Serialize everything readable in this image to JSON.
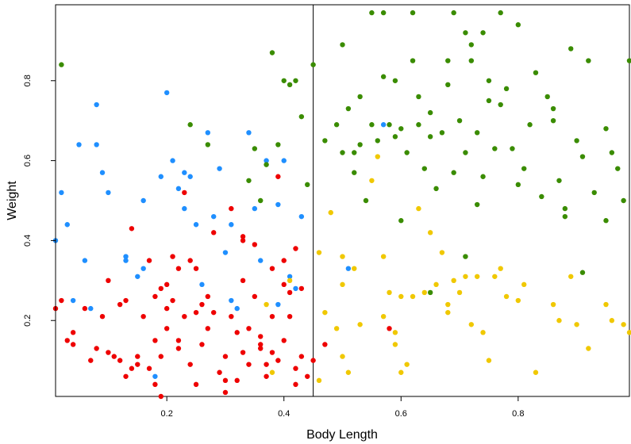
{
  "chart_data": {
    "type": "scatter",
    "title": "",
    "xlabel": "Body Length",
    "ylabel": "Weight",
    "xlim": [
      0.01,
      0.99
    ],
    "ylim": [
      0.01,
      0.99
    ],
    "x_ticks": [
      0.2,
      0.4,
      0.6,
      0.8
    ],
    "y_ticks": [
      0.2,
      0.4,
      0.6,
      0.8
    ],
    "x_tick_labels": [
      "0.2",
      "0.4",
      "0.6",
      "0.8"
    ],
    "y_tick_labels": [
      "0.2",
      "0.4",
      "0.6",
      "0.8"
    ],
    "grid": false,
    "legend": "none",
    "decision_boundaries": {
      "vertical_x": 0.45
    },
    "series": [
      {
        "color": "#1f8fff",
        "points": [
          [
            0.01,
            0.4
          ],
          [
            0.02,
            0.52
          ],
          [
            0.03,
            0.44
          ],
          [
            0.05,
            0.64
          ],
          [
            0.06,
            0.35
          ],
          [
            0.08,
            0.74
          ],
          [
            0.08,
            0.64
          ],
          [
            0.09,
            0.57
          ],
          [
            0.1,
            0.52
          ],
          [
            0.13,
            0.36
          ],
          [
            0.13,
            0.35
          ],
          [
            0.15,
            0.31
          ],
          [
            0.16,
            0.5
          ],
          [
            0.16,
            0.33
          ],
          [
            0.19,
            0.56
          ],
          [
            0.2,
            0.77
          ],
          [
            0.21,
            0.6
          ],
          [
            0.22,
            0.53
          ],
          [
            0.23,
            0.57
          ],
          [
            0.23,
            0.48
          ],
          [
            0.24,
            0.56
          ],
          [
            0.25,
            0.44
          ],
          [
            0.26,
            0.29
          ],
          [
            0.27,
            0.67
          ],
          [
            0.28,
            0.46
          ],
          [
            0.29,
            0.58
          ],
          [
            0.3,
            0.37
          ],
          [
            0.31,
            0.44
          ],
          [
            0.31,
            0.25
          ],
          [
            0.32,
            0.23
          ],
          [
            0.34,
            0.67
          ],
          [
            0.35,
            0.48
          ],
          [
            0.36,
            0.35
          ],
          [
            0.37,
            0.6
          ],
          [
            0.39,
            0.49
          ],
          [
            0.39,
            0.24
          ],
          [
            0.4,
            0.6
          ],
          [
            0.41,
            0.31
          ],
          [
            0.42,
            0.28
          ],
          [
            0.43,
            0.46
          ],
          [
            0.04,
            0.25
          ],
          [
            0.07,
            0.23
          ],
          [
            0.57,
            0.69
          ],
          [
            0.51,
            0.33
          ],
          [
            0.18,
            0.06
          ]
        ]
      },
      {
        "color": "#ee0000",
        "points": [
          [
            0.01,
            0.23
          ],
          [
            0.02,
            0.25
          ],
          [
            0.03,
            0.15
          ],
          [
            0.04,
            0.17
          ],
          [
            0.04,
            0.14
          ],
          [
            0.06,
            0.23
          ],
          [
            0.07,
            0.1
          ],
          [
            0.08,
            0.13
          ],
          [
            0.09,
            0.21
          ],
          [
            0.1,
            0.3
          ],
          [
            0.1,
            0.12
          ],
          [
            0.11,
            0.11
          ],
          [
            0.12,
            0.24
          ],
          [
            0.12,
            0.1
          ],
          [
            0.13,
            0.06
          ],
          [
            0.13,
            0.25
          ],
          [
            0.14,
            0.43
          ],
          [
            0.14,
            0.08
          ],
          [
            0.15,
            0.09
          ],
          [
            0.15,
            0.11
          ],
          [
            0.16,
            0.21
          ],
          [
            0.17,
            0.35
          ],
          [
            0.17,
            0.08
          ],
          [
            0.18,
            0.15
          ],
          [
            0.18,
            0.04
          ],
          [
            0.19,
            0.28
          ],
          [
            0.19,
            0.11
          ],
          [
            0.2,
            0.23
          ],
          [
            0.2,
            0.29
          ],
          [
            0.2,
            0.18
          ],
          [
            0.21,
            0.36
          ],
          [
            0.21,
            0.25
          ],
          [
            0.22,
            0.13
          ],
          [
            0.22,
            0.15
          ],
          [
            0.23,
            0.21
          ],
          [
            0.23,
            0.52
          ],
          [
            0.24,
            0.35
          ],
          [
            0.24,
            0.09
          ],
          [
            0.25,
            0.33
          ],
          [
            0.25,
            0.22
          ],
          [
            0.25,
            0.04
          ],
          [
            0.26,
            0.24
          ],
          [
            0.26,
            0.14
          ],
          [
            0.27,
            0.18
          ],
          [
            0.28,
            0.22
          ],
          [
            0.28,
            0.42
          ],
          [
            0.29,
            0.07
          ],
          [
            0.3,
            0.11
          ],
          [
            0.3,
            0.02
          ],
          [
            0.31,
            0.21
          ],
          [
            0.32,
            0.17
          ],
          [
            0.32,
            0.05
          ],
          [
            0.33,
            0.3
          ],
          [
            0.33,
            0.41
          ],
          [
            0.33,
            0.12
          ],
          [
            0.34,
            0.18
          ],
          [
            0.34,
            0.09
          ],
          [
            0.35,
            0.39
          ],
          [
            0.35,
            0.26
          ],
          [
            0.36,
            0.16
          ],
          [
            0.36,
            0.13
          ],
          [
            0.37,
            0.06
          ],
          [
            0.37,
            0.09
          ],
          [
            0.38,
            0.21
          ],
          [
            0.38,
            0.33
          ],
          [
            0.38,
            0.12
          ],
          [
            0.39,
            0.56
          ],
          [
            0.39,
            0.1
          ],
          [
            0.4,
            0.35
          ],
          [
            0.4,
            0.15
          ],
          [
            0.41,
            0.27
          ],
          [
            0.41,
            0.21
          ],
          [
            0.42,
            0.08
          ],
          [
            0.42,
            0.04
          ],
          [
            0.43,
            0.28
          ],
          [
            0.43,
            0.11
          ],
          [
            0.44,
            0.06
          ],
          [
            0.45,
            0.1
          ],
          [
            0.33,
            0.4
          ],
          [
            0.19,
            0.01
          ],
          [
            0.36,
            0.14
          ],
          [
            0.3,
            0.05
          ],
          [
            0.47,
            0.14
          ],
          [
            0.58,
            0.18
          ],
          [
            0.31,
            0.48
          ],
          [
            0.22,
            0.33
          ],
          [
            0.4,
            0.29
          ],
          [
            0.27,
            0.26
          ],
          [
            0.18,
            0.26
          ],
          [
            0.42,
            0.38
          ]
        ]
      },
      {
        "color": "#f0c800",
        "points": [
          [
            0.41,
            0.3
          ],
          [
            0.46,
            0.37
          ],
          [
            0.47,
            0.22
          ],
          [
            0.48,
            0.47
          ],
          [
            0.5,
            0.36
          ],
          [
            0.5,
            0.29
          ],
          [
            0.5,
            0.11
          ],
          [
            0.51,
            0.07
          ],
          [
            0.52,
            0.33
          ],
          [
            0.53,
            0.19
          ],
          [
            0.55,
            0.55
          ],
          [
            0.56,
            0.61
          ],
          [
            0.57,
            0.36
          ],
          [
            0.57,
            0.21
          ],
          [
            0.58,
            0.27
          ],
          [
            0.59,
            0.17
          ],
          [
            0.59,
            0.14
          ],
          [
            0.6,
            0.26
          ],
          [
            0.6,
            0.07
          ],
          [
            0.61,
            0.09
          ],
          [
            0.62,
            0.26
          ],
          [
            0.63,
            0.48
          ],
          [
            0.64,
            0.27
          ],
          [
            0.65,
            0.42
          ],
          [
            0.66,
            0.29
          ],
          [
            0.67,
            0.37
          ],
          [
            0.68,
            0.22
          ],
          [
            0.68,
            0.24
          ],
          [
            0.69,
            0.3
          ],
          [
            0.7,
            0.27
          ],
          [
            0.71,
            0.31
          ],
          [
            0.72,
            0.19
          ],
          [
            0.73,
            0.31
          ],
          [
            0.74,
            0.17
          ],
          [
            0.75,
            0.1
          ],
          [
            0.76,
            0.31
          ],
          [
            0.77,
            0.33
          ],
          [
            0.78,
            0.26
          ],
          [
            0.8,
            0.25
          ],
          [
            0.81,
            0.29
          ],
          [
            0.83,
            0.07
          ],
          [
            0.86,
            0.24
          ],
          [
            0.87,
            0.2
          ],
          [
            0.89,
            0.31
          ],
          [
            0.9,
            0.19
          ],
          [
            0.92,
            0.13
          ],
          [
            0.95,
            0.24
          ],
          [
            0.96,
            0.2
          ],
          [
            0.98,
            0.19
          ],
          [
            0.99,
            0.17
          ],
          [
            0.49,
            0.18
          ],
          [
            0.46,
            0.05
          ],
          [
            0.37,
            0.24
          ],
          [
            0.38,
            0.07
          ]
        ]
      },
      {
        "color": "#3a8c00",
        "points": [
          [
            0.02,
            0.84
          ],
          [
            0.24,
            0.69
          ],
          [
            0.27,
            0.64
          ],
          [
            0.34,
            0.55
          ],
          [
            0.35,
            0.63
          ],
          [
            0.36,
            0.5
          ],
          [
            0.37,
            0.59
          ],
          [
            0.38,
            0.87
          ],
          [
            0.39,
            0.64
          ],
          [
            0.4,
            0.8
          ],
          [
            0.41,
            0.79
          ],
          [
            0.42,
            0.8
          ],
          [
            0.43,
            0.71
          ],
          [
            0.44,
            0.54
          ],
          [
            0.45,
            0.84
          ],
          [
            0.47,
            0.65
          ],
          [
            0.49,
            0.69
          ],
          [
            0.5,
            0.62
          ],
          [
            0.5,
            0.89
          ],
          [
            0.51,
            0.73
          ],
          [
            0.52,
            0.62
          ],
          [
            0.52,
            0.57
          ],
          [
            0.53,
            0.64
          ],
          [
            0.54,
            0.5
          ],
          [
            0.55,
            0.69
          ],
          [
            0.56,
            0.65
          ],
          [
            0.57,
            0.97
          ],
          [
            0.58,
            0.69
          ],
          [
            0.59,
            0.8
          ],
          [
            0.59,
            0.66
          ],
          [
            0.6,
            0.68
          ],
          [
            0.6,
            0.45
          ],
          [
            0.61,
            0.62
          ],
          [
            0.62,
            0.85
          ],
          [
            0.63,
            0.69
          ],
          [
            0.63,
            0.76
          ],
          [
            0.64,
            0.58
          ],
          [
            0.65,
            0.66
          ],
          [
            0.65,
            0.72
          ],
          [
            0.66,
            0.53
          ],
          [
            0.67,
            0.67
          ],
          [
            0.68,
            0.79
          ],
          [
            0.68,
            0.85
          ],
          [
            0.69,
            0.97
          ],
          [
            0.69,
            0.57
          ],
          [
            0.7,
            0.7
          ],
          [
            0.71,
            0.92
          ],
          [
            0.71,
            0.62
          ],
          [
            0.72,
            0.85
          ],
          [
            0.72,
            0.89
          ],
          [
            0.73,
            0.67
          ],
          [
            0.74,
            0.92
          ],
          [
            0.74,
            0.56
          ],
          [
            0.75,
            0.8
          ],
          [
            0.75,
            0.75
          ],
          [
            0.76,
            0.63
          ],
          [
            0.77,
            0.74
          ],
          [
            0.78,
            0.78
          ],
          [
            0.79,
            0.63
          ],
          [
            0.8,
            0.94
          ],
          [
            0.81,
            0.58
          ],
          [
            0.82,
            0.69
          ],
          [
            0.83,
            0.82
          ],
          [
            0.84,
            0.51
          ],
          [
            0.85,
            0.76
          ],
          [
            0.86,
            0.73
          ],
          [
            0.87,
            0.55
          ],
          [
            0.88,
            0.48
          ],
          [
            0.89,
            0.88
          ],
          [
            0.9,
            0.65
          ],
          [
            0.91,
            0.61
          ],
          [
            0.92,
            0.85
          ],
          [
            0.93,
            0.52
          ],
          [
            0.95,
            0.68
          ],
          [
            0.96,
            0.62
          ],
          [
            0.97,
            0.58
          ],
          [
            0.98,
            0.5
          ],
          [
            0.99,
            0.85
          ],
          [
            0.71,
            0.36
          ],
          [
            0.65,
            0.27
          ],
          [
            0.55,
            0.97
          ],
          [
            0.62,
            0.97
          ],
          [
            0.88,
            0.46
          ],
          [
            0.73,
            0.49
          ],
          [
            0.8,
            0.54
          ],
          [
            0.77,
            0.97
          ],
          [
            0.86,
            0.7
          ],
          [
            0.91,
            0.32
          ],
          [
            0.95,
            0.45
          ],
          [
            0.53,
            0.76
          ],
          [
            0.57,
            0.81
          ]
        ]
      }
    ]
  }
}
